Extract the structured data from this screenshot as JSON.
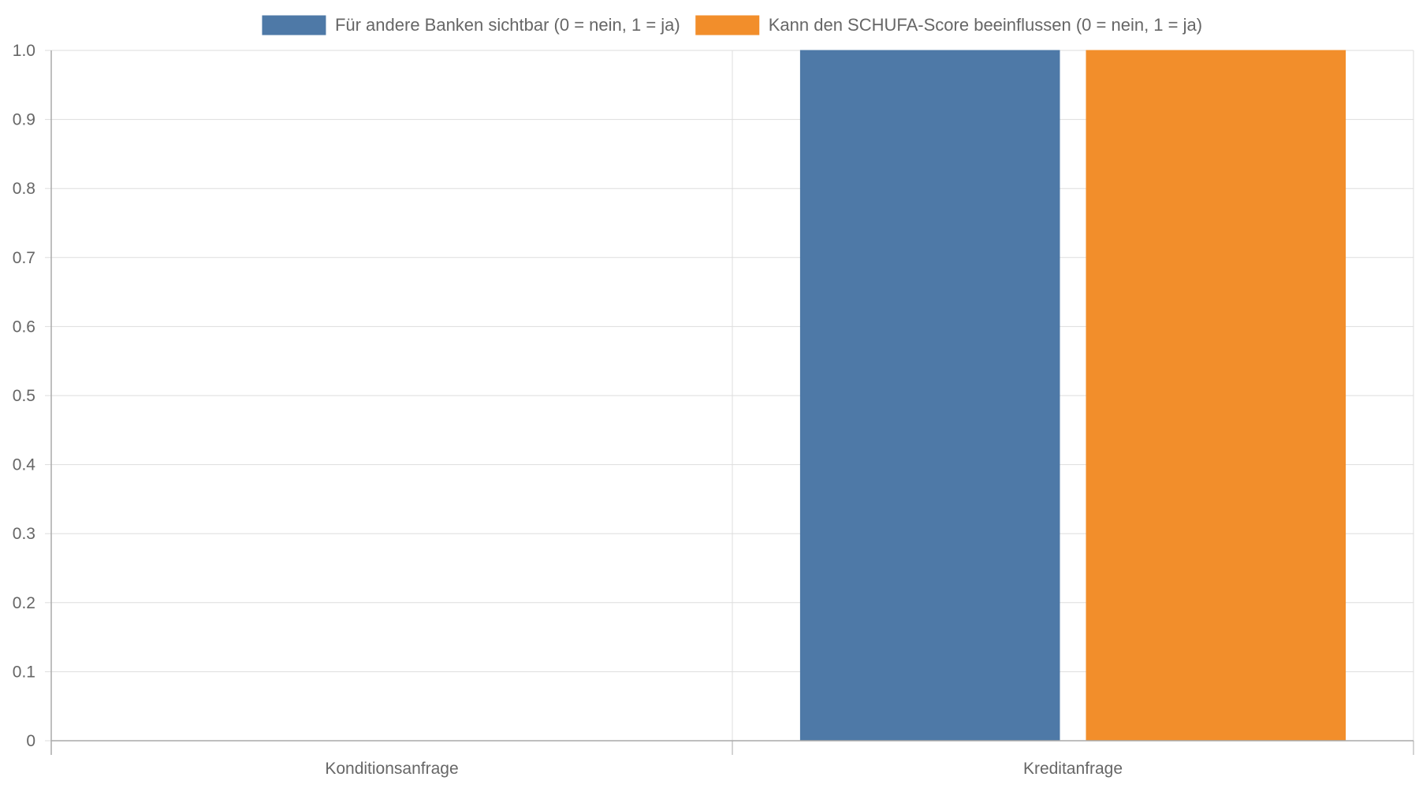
{
  "chart_data": {
    "type": "bar",
    "categories": [
      "Konditionsanfrage",
      "Kreditanfrage"
    ],
    "series": [
      {
        "name": "Für andere Banken sichtbar (0 = nein, 1 = ja)",
        "values": [
          0,
          1
        ],
        "color": "#4e79a7"
      },
      {
        "name": "Kann den SCHUFA-Score beeinflussen (0 = nein, 1 = ja)",
        "values": [
          0,
          1
        ],
        "color": "#f28e2b"
      }
    ],
    "ylim": [
      0,
      1.0
    ],
    "yticks": [
      "0",
      "0.1",
      "0.2",
      "0.3",
      "0.4",
      "0.5",
      "0.6",
      "0.7",
      "0.8",
      "0.9",
      "1.0"
    ],
    "grid": true,
    "legend_position": "top-center",
    "title": "",
    "xlabel": "",
    "ylabel": ""
  }
}
